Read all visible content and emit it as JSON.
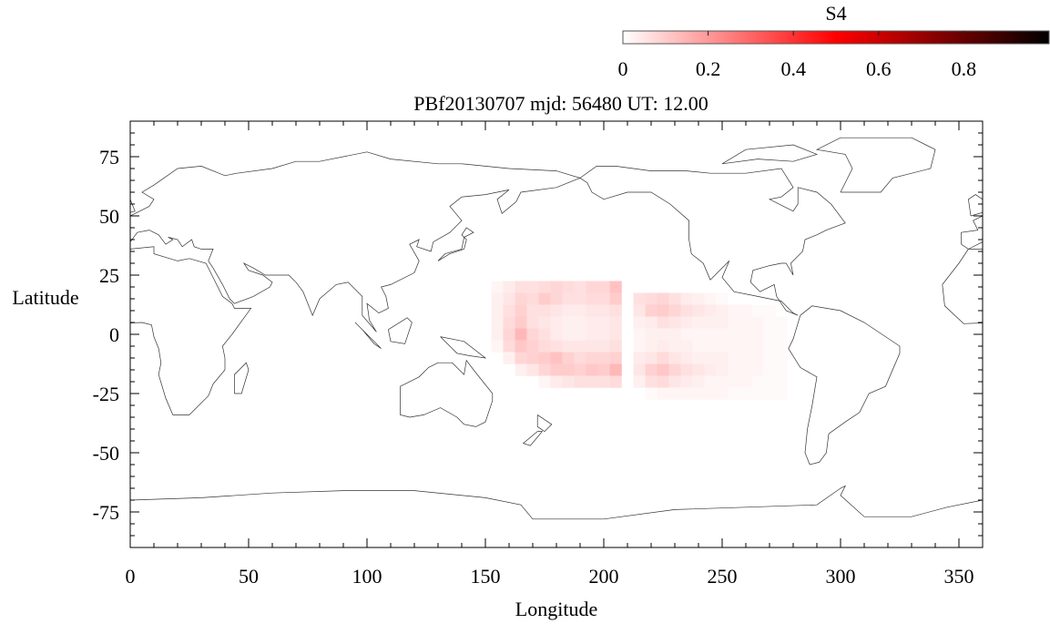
{
  "chart_data": {
    "type": "heatmap",
    "title": "PBf20130707  mjd: 56480  UT:  12.00",
    "xlabel": "Longitude",
    "ylabel": "Latitude",
    "xlim": [
      0,
      360
    ],
    "ylim": [
      -90,
      90
    ],
    "xticks": [
      "0",
      "50",
      "100",
      "150",
      "200",
      "250",
      "300",
      "350"
    ],
    "xtick_values": [
      0,
      50,
      100,
      150,
      200,
      250,
      300,
      350
    ],
    "yticks": [
      "75",
      "50",
      "25",
      "0",
      "-25",
      "-50",
      "-75"
    ],
    "ytick_values": [
      75,
      50,
      25,
      0,
      -25,
      -50,
      -75
    ],
    "colorbar": {
      "label": "S4",
      "range": [
        0,
        1
      ],
      "ticks": [
        "0",
        "0.2",
        "0.4",
        "0.6",
        "0.8"
      ],
      "tick_values": [
        0,
        0.2,
        0.4,
        0.6,
        0.8
      ],
      "colormap": [
        "#ffffff",
        "#ff0000",
        "#000000"
      ]
    },
    "cell_size_deg": 5,
    "blocks": [
      {
        "lons": [
          155,
          160,
          165,
          170,
          175,
          180,
          185,
          190,
          195,
          200,
          205
        ],
        "lats": [
          20,
          15,
          10,
          5,
          0,
          -5,
          -10,
          -15,
          -20
        ],
        "values": [
          [
            0.02,
            0.04,
            0.06,
            0.06,
            0.07,
            0.08,
            0.07,
            0.06,
            0.08,
            0.08,
            0.12
          ],
          [
            0.03,
            0.05,
            0.08,
            0.07,
            0.1,
            0.08,
            0.06,
            0.06,
            0.07,
            0.07,
            0.1
          ],
          [
            0.03,
            0.06,
            0.09,
            0.06,
            0.06,
            0.05,
            0.04,
            0.04,
            0.05,
            0.05,
            0.06
          ],
          [
            0.03,
            0.07,
            0.1,
            0.06,
            0.05,
            0.04,
            0.03,
            0.03,
            0.04,
            0.04,
            0.05
          ],
          [
            0.03,
            0.08,
            0.14,
            0.08,
            0.06,
            0.04,
            0.03,
            0.03,
            0.04,
            0.04,
            0.05
          ],
          [
            0.02,
            0.07,
            0.11,
            0.09,
            0.07,
            0.06,
            0.05,
            0.05,
            0.05,
            0.05,
            0.06
          ],
          [
            0.0,
            0.03,
            0.08,
            0.09,
            0.1,
            0.12,
            0.09,
            0.07,
            0.08,
            0.08,
            0.09
          ],
          [
            0.0,
            0.0,
            0.03,
            0.05,
            0.08,
            0.1,
            0.1,
            0.09,
            0.11,
            0.1,
            0.14
          ],
          [
            0.0,
            0.0,
            0.0,
            0.0,
            0.02,
            0.04,
            0.05,
            0.06,
            0.06,
            0.06,
            0.07
          ]
        ]
      },
      {
        "lons": [
          215,
          220,
          225,
          230,
          235,
          240,
          245,
          250,
          255,
          260,
          265,
          270,
          275
        ],
        "lats": [
          15,
          10,
          5,
          0,
          -5,
          -10,
          -15,
          -20,
          -25
        ],
        "values": [
          [
            0.06,
            0.07,
            0.08,
            0.06,
            0.04,
            0.03,
            0.02,
            0.01,
            0.0,
            0.0,
            0.0,
            0.0,
            0.0
          ],
          [
            0.05,
            0.09,
            0.1,
            0.08,
            0.06,
            0.05,
            0.04,
            0.03,
            0.02,
            0.02,
            0.01,
            0.01,
            0.0
          ],
          [
            0.03,
            0.04,
            0.06,
            0.05,
            0.04,
            0.03,
            0.03,
            0.03,
            0.02,
            0.02,
            0.02,
            0.01,
            0.01
          ],
          [
            0.02,
            0.03,
            0.03,
            0.03,
            0.02,
            0.02,
            0.02,
            0.02,
            0.02,
            0.02,
            0.02,
            0.01,
            0.01
          ],
          [
            0.02,
            0.03,
            0.04,
            0.03,
            0.03,
            0.02,
            0.02,
            0.02,
            0.02,
            0.02,
            0.02,
            0.01,
            0.01
          ],
          [
            0.04,
            0.05,
            0.07,
            0.05,
            0.04,
            0.03,
            0.03,
            0.03,
            0.02,
            0.02,
            0.02,
            0.01,
            0.01
          ],
          [
            0.05,
            0.09,
            0.11,
            0.08,
            0.06,
            0.05,
            0.04,
            0.03,
            0.02,
            0.02,
            0.02,
            0.01,
            0.01
          ],
          [
            0.03,
            0.06,
            0.07,
            0.05,
            0.04,
            0.03,
            0.02,
            0.02,
            0.02,
            0.02,
            0.01,
            0.01,
            0.01
          ],
          [
            0.0,
            0.01,
            0.02,
            0.02,
            0.02,
            0.02,
            0.02,
            0.02,
            0.01,
            0.01,
            0.01,
            0.01,
            0.01
          ]
        ]
      }
    ]
  }
}
